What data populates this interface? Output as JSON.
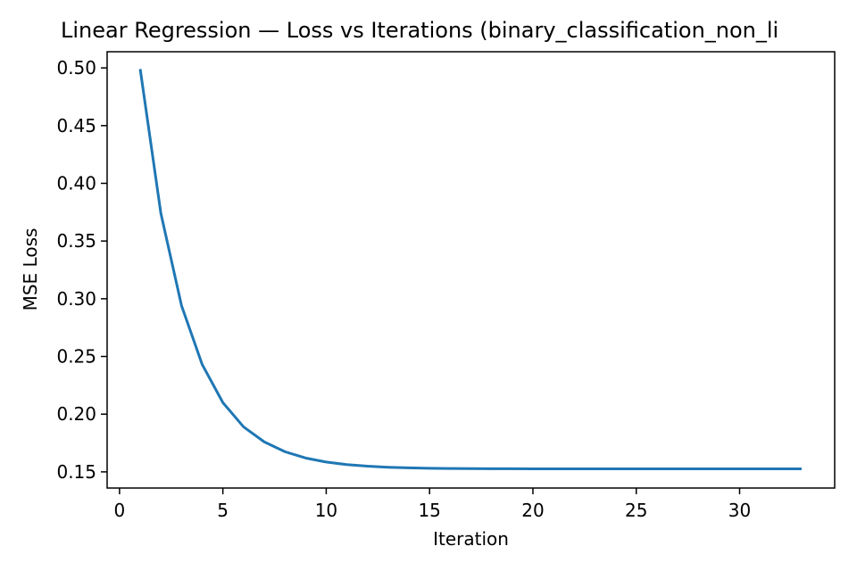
{
  "chart_data": {
    "type": "line",
    "title": "Linear Regression — Loss vs Iterations (binary_classification_non_li",
    "xlabel": "Iteration",
    "ylabel": "MSE Loss",
    "xlim": [
      -0.6,
      34.6
    ],
    "ylim": [
      0.136,
      0.514
    ],
    "xticks": [
      0,
      5,
      10,
      15,
      20,
      25,
      30
    ],
    "xtick_labels": [
      "0",
      "5",
      "10",
      "15",
      "20",
      "25",
      "30"
    ],
    "yticks": [
      0.15,
      0.2,
      0.25,
      0.3,
      0.35,
      0.4,
      0.45,
      0.5
    ],
    "ytick_labels": [
      "0.15",
      "0.20",
      "0.25",
      "0.30",
      "0.35",
      "0.40",
      "0.45",
      "0.50"
    ],
    "grid": false,
    "line_color": "#1f77b4",
    "series": [
      {
        "x": [
          1,
          2,
          3,
          4,
          5,
          6,
          7,
          8,
          9,
          10,
          11,
          12,
          13,
          14,
          15,
          16,
          17,
          18,
          19,
          20,
          21,
          22,
          23,
          24,
          25,
          26,
          27,
          28,
          29,
          30,
          31,
          32,
          33
        ],
        "values": [
          0.499,
          0.374,
          0.294,
          0.243,
          0.21,
          0.189,
          0.176,
          0.1675,
          0.162,
          0.1585,
          0.1563,
          0.1549,
          0.154,
          0.1535,
          0.1531,
          0.1529,
          0.1528,
          0.1527,
          0.1527,
          0.1526,
          0.1526,
          0.1526,
          0.1526,
          0.1526,
          0.1526,
          0.1526,
          0.1526,
          0.1526,
          0.1526,
          0.1526,
          0.1526,
          0.1526,
          0.1526
        ]
      }
    ]
  }
}
